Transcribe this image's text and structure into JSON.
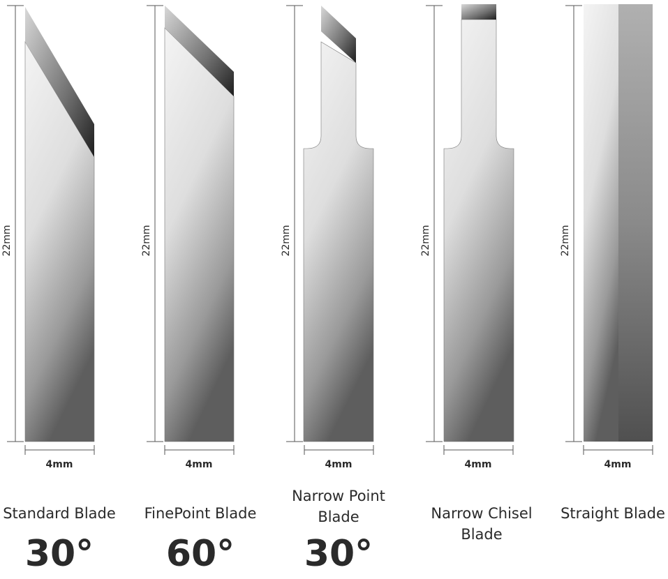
{
  "blades": [
    {
      "height": "22mm",
      "width": "4mm",
      "name": [
        "Standard Blade"
      ],
      "angle": "30°"
    },
    {
      "height": "22mm",
      "width": "4mm",
      "name": [
        "FinePoint Blade"
      ],
      "angle": "60°"
    },
    {
      "height": "22mm",
      "width": "4mm",
      "name": [
        "Narrow Point",
        "Blade"
      ],
      "angle": "30°"
    },
    {
      "height": "22mm",
      "width": "4mm",
      "name": [
        "Narrow Chisel",
        "Blade"
      ]
    },
    {
      "height": "22mm",
      "width": "4mm",
      "name": [
        "Straight Blade"
      ]
    }
  ]
}
